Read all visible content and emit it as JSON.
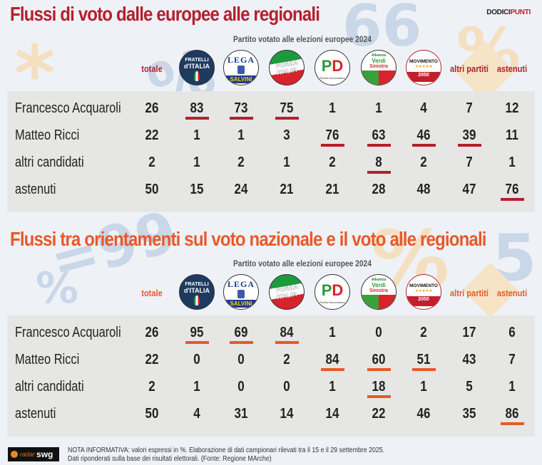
{
  "brand": {
    "part1": "DODICI",
    "part2": "PUNTI"
  },
  "colors": {
    "section1_accent": "#b51f2e",
    "section2_accent": "#e8592a",
    "table_bg": "#e6e6e4",
    "page_bg": "#eef2f7"
  },
  "logos": [
    {
      "id": "fdi",
      "name": "Fratelli d'Italia",
      "lines": [
        "FRATELLI",
        "d'ITALIA"
      ]
    },
    {
      "id": "lega",
      "name": "Lega Salvini Premier",
      "lines": [
        "LEGA",
        "SALVINI",
        "PREMIER"
      ]
    },
    {
      "id": "fi",
      "name": "Forza Italia",
      "lines": [
        "FORZA",
        "ITALIA"
      ]
    },
    {
      "id": "pd",
      "name": "Partito Democratico",
      "lines": [
        "PD",
        "Partito Democratico"
      ]
    },
    {
      "id": "avs",
      "name": "Alleanza Verdi Sinistra",
      "lines": [
        "Alleanza",
        "Verdi",
        "Sinistra"
      ]
    },
    {
      "id": "m5s",
      "name": "Movimento 5 Stelle",
      "lines": [
        "MOVIMENTO",
        "★★★★★",
        "2050"
      ]
    }
  ],
  "chart_data": [
    {
      "type": "table",
      "title": "Flussi di voto dalle europee alle regionali",
      "subtitle": "Partito votato alle elezioni europee 2024",
      "columns": [
        "totale",
        "Fratelli d'Italia",
        "Lega",
        "Forza Italia",
        "PD",
        "AVS",
        "M5S",
        "altri partiti",
        "astenuti"
      ],
      "column_headers_text": {
        "totale": "totale",
        "altri": "altri partiti",
        "astenuti": "astenuti"
      },
      "unit": "%",
      "rows": [
        {
          "label": "Francesco Acquaroli",
          "values": [
            26,
            83,
            73,
            75,
            1,
            1,
            4,
            7,
            12
          ],
          "highlighted": [
            1,
            2,
            3
          ]
        },
        {
          "label": "Matteo Ricci",
          "values": [
            22,
            1,
            1,
            3,
            76,
            63,
            46,
            39,
            11
          ],
          "highlighted": [
            4,
            5,
            6,
            7
          ]
        },
        {
          "label": "altri candidati",
          "values": [
            2,
            1,
            2,
            1,
            2,
            8,
            2,
            7,
            1
          ],
          "highlighted": [
            5
          ]
        },
        {
          "label": "astenuti",
          "values": [
            50,
            15,
            24,
            21,
            21,
            28,
            48,
            47,
            76
          ],
          "highlighted": [
            8
          ]
        }
      ]
    },
    {
      "type": "table",
      "title": "Flussi tra orientamenti sul voto nazionale e il voto alle regionali",
      "subtitle": "Partito votato alle elezioni europee 2024",
      "columns": [
        "totale",
        "Fratelli d'Italia",
        "Lega",
        "Forza Italia",
        "PD",
        "AVS",
        "M5S",
        "altri partiti",
        "astenuti"
      ],
      "column_headers_text": {
        "totale": "totale",
        "altri": "altri partiti",
        "astenuti": "astenuti"
      },
      "unit": "%",
      "rows": [
        {
          "label": "Francesco Acquaroli",
          "values": [
            26,
            95,
            69,
            84,
            1,
            0,
            2,
            17,
            6
          ],
          "highlighted": [
            1,
            2,
            3
          ]
        },
        {
          "label": "Matteo Ricci",
          "values": [
            22,
            0,
            0,
            2,
            84,
            60,
            51,
            43,
            7
          ],
          "highlighted": [
            4,
            5,
            6
          ]
        },
        {
          "label": "altri candidati",
          "values": [
            2,
            1,
            0,
            0,
            1,
            18,
            1,
            5,
            1
          ],
          "highlighted": [
            5
          ]
        },
        {
          "label": "astenuti",
          "values": [
            50,
            4,
            31,
            14,
            14,
            22,
            46,
            35,
            86
          ],
          "highlighted": [
            8
          ]
        }
      ]
    }
  ],
  "footer": {
    "logo_radar": "radar",
    "logo_swg": "swg",
    "note_line1": "NOTA INFORMATIVA: valori espressi in %. Elaborazione di dati campionari rilevati tra il 15 e il 29 settembre 2025.",
    "note_line2": "Dati riponderati sulla base dei risultati elettorali. (Fonte: Regione MArche)"
  }
}
